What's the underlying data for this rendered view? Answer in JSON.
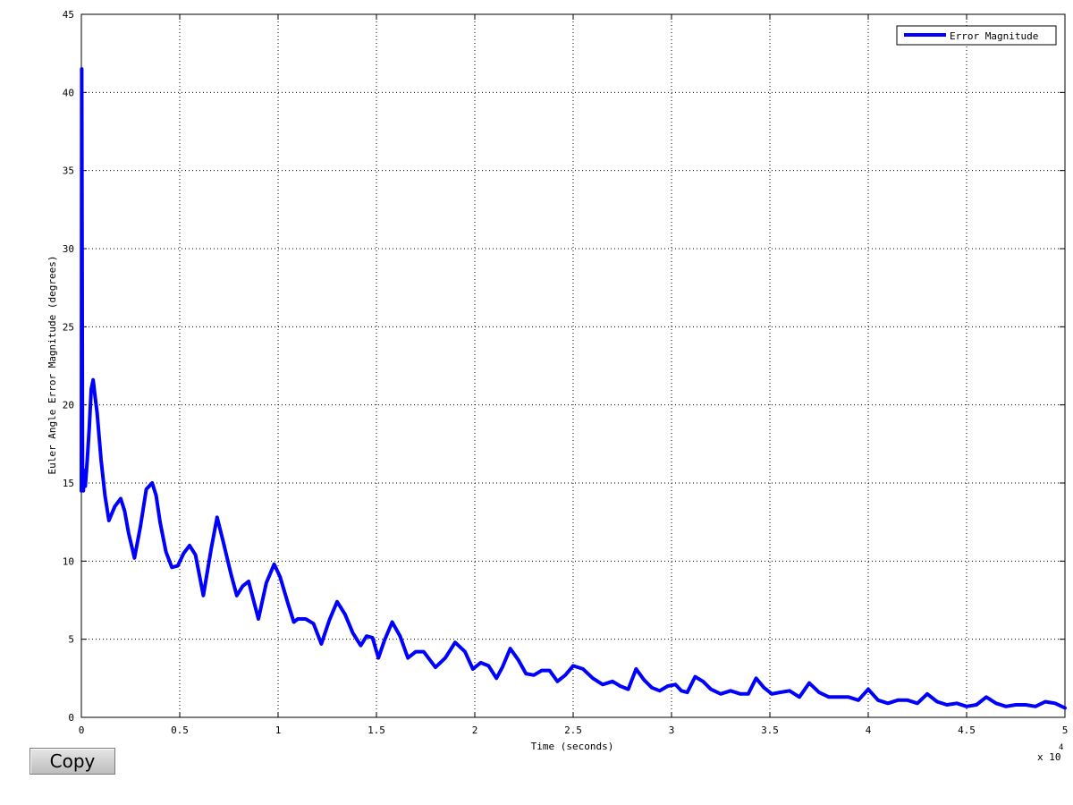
{
  "chart_data": {
    "type": "line",
    "title": "",
    "xlabel": "Time (seconds)",
    "ylabel": "Euler Angle Error Magnitude (degrees)",
    "x_multiplier_label": "x 10",
    "x_multiplier_exponent": "4",
    "xlim": [
      0,
      5
    ],
    "ylim": [
      0,
      45
    ],
    "x_ticks": [
      0,
      0.5,
      1,
      1.5,
      2,
      2.5,
      3,
      3.5,
      4,
      4.5,
      5
    ],
    "x_tick_labels": [
      "0",
      "0.5",
      "1",
      "1.5",
      "2",
      "2.5",
      "3",
      "3.5",
      "4",
      "4.5",
      "5"
    ],
    "y_ticks": [
      0,
      5,
      10,
      15,
      20,
      25,
      30,
      35,
      40,
      45
    ],
    "y_tick_labels": [
      "0",
      "5",
      "10",
      "15",
      "20",
      "25",
      "30",
      "35",
      "40",
      "45"
    ],
    "grid": true,
    "legend_position": "top-right",
    "series": [
      {
        "name": "Error Magnitude",
        "color": "#0000ff",
        "x": [
          0,
          0.002,
          0.004,
          0.006,
          0.01,
          0.015,
          0.02,
          0.03,
          0.04,
          0.05,
          0.06,
          0.07,
          0.08,
          0.1,
          0.12,
          0.14,
          0.17,
          0.2,
          0.22,
          0.24,
          0.27,
          0.3,
          0.33,
          0.36,
          0.38,
          0.4,
          0.43,
          0.46,
          0.49,
          0.52,
          0.55,
          0.58,
          0.62,
          0.66,
          0.69,
          0.72,
          0.76,
          0.79,
          0.82,
          0.85,
          0.9,
          0.94,
          0.98,
          1.01,
          1.05,
          1.08,
          1.1,
          1.14,
          1.18,
          1.22,
          1.26,
          1.3,
          1.34,
          1.38,
          1.42,
          1.45,
          1.48,
          1.51,
          1.54,
          1.58,
          1.62,
          1.66,
          1.7,
          1.74,
          1.8,
          1.85,
          1.9,
          1.95,
          1.99,
          2.03,
          2.07,
          2.11,
          2.14,
          2.18,
          2.22,
          2.26,
          2.3,
          2.34,
          2.38,
          2.42,
          2.46,
          2.5,
          2.55,
          2.6,
          2.65,
          2.7,
          2.74,
          2.78,
          2.82,
          2.86,
          2.9,
          2.94,
          2.98,
          3.02,
          3.05,
          3.08,
          3.12,
          3.16,
          3.2,
          3.25,
          3.3,
          3.35,
          3.39,
          3.43,
          3.47,
          3.51,
          3.55,
          3.6,
          3.65,
          3.7,
          3.75,
          3.8,
          3.85,
          3.9,
          3.95,
          4.0,
          4.05,
          4.1,
          4.15,
          4.2,
          4.25,
          4.3,
          4.35,
          4.4,
          4.45,
          4.5,
          4.55,
          4.6,
          4.65,
          4.7,
          4.75,
          4.8,
          4.85,
          4.9,
          4.95,
          5.0
        ],
        "y": [
          14.5,
          41.5,
          28,
          15.5,
          14.5,
          15.8,
          14.8,
          16.5,
          18.5,
          21,
          21.6,
          20.5,
          19.5,
          16.5,
          14.2,
          12.6,
          13.5,
          14.0,
          13.2,
          11.8,
          10.2,
          12.2,
          14.6,
          15.0,
          14.2,
          12.5,
          10.6,
          9.6,
          9.7,
          10.5,
          11.0,
          10.4,
          7.8,
          10.8,
          12.8,
          11.3,
          9.2,
          7.8,
          8.4,
          8.7,
          6.3,
          8.6,
          9.8,
          9.0,
          7.3,
          6.1,
          6.3,
          6.3,
          6.0,
          4.7,
          6.2,
          7.4,
          6.6,
          5.4,
          4.6,
          5.2,
          5.1,
          3.8,
          4.9,
          6.1,
          5.2,
          3.8,
          4.2,
          4.2,
          3.2,
          3.8,
          4.8,
          4.2,
          3.1,
          3.5,
          3.3,
          2.5,
          3.2,
          4.4,
          3.7,
          2.8,
          2.7,
          3.0,
          3.0,
          2.3,
          2.7,
          3.3,
          3.1,
          2.5,
          2.1,
          2.3,
          2.0,
          1.8,
          3.1,
          2.4,
          1.9,
          1.7,
          2.0,
          2.1,
          1.7,
          1.6,
          2.6,
          2.3,
          1.8,
          1.5,
          1.7,
          1.5,
          1.5,
          2.5,
          1.9,
          1.5,
          1.6,
          1.7,
          1.3,
          2.2,
          1.6,
          1.3,
          1.3,
          1.3,
          1.1,
          1.8,
          1.1,
          0.9,
          1.1,
          1.1,
          0.9,
          1.5,
          1.0,
          0.8,
          0.9,
          0.7,
          0.8,
          1.3,
          0.9,
          0.7,
          0.8,
          0.8,
          0.7,
          1.0,
          0.9,
          0.6
        ]
      }
    ]
  },
  "controls": {
    "copy_label": "Copy"
  }
}
